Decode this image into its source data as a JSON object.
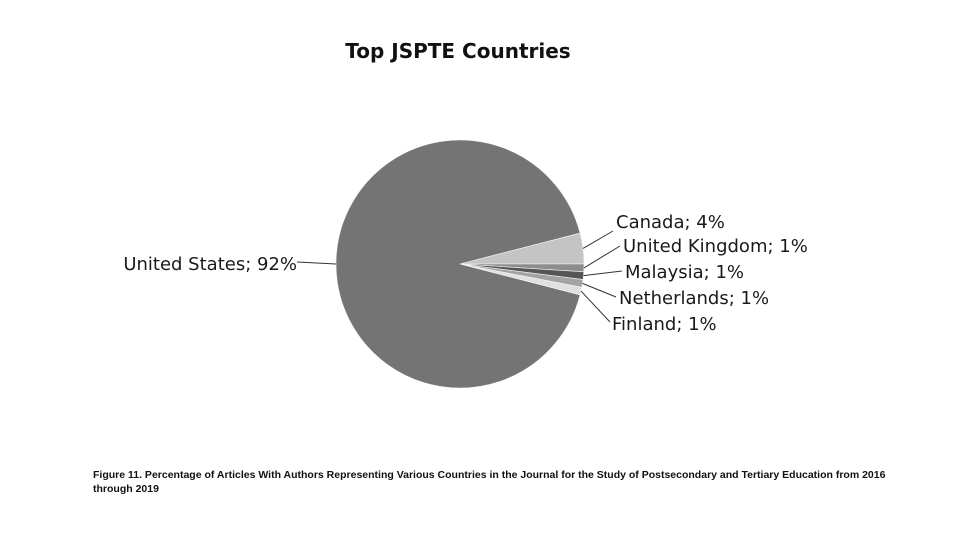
{
  "chart_data": {
    "type": "pie",
    "title": "Top JSPTE Countries",
    "slices": [
      {
        "label": "United States; 92%",
        "name": "United States",
        "value": 92,
        "color": "#747474"
      },
      {
        "label": "Canada; 4%",
        "name": "Canada",
        "value": 4,
        "color": "#c4c4c4"
      },
      {
        "label": "United Kingdom; 1%",
        "name": "United Kingdom",
        "value": 1,
        "color": "#8c8c8c"
      },
      {
        "label": "Malaysia; 1%",
        "name": "Malaysia",
        "value": 1,
        "color": "#555555"
      },
      {
        "label": "Netherlands; 1%",
        "name": "Netherlands",
        "value": 1,
        "color": "#a3a3a3"
      },
      {
        "label": "Finland; 1%",
        "name": "Finland",
        "value": 1,
        "color": "#e0e0e0"
      }
    ]
  },
  "caption": "Figure 11. Percentage of Articles With Authors Representing Various Countries in the Journal for the Study of Postsecondary and Tertiary Education from 2016 through 2019"
}
